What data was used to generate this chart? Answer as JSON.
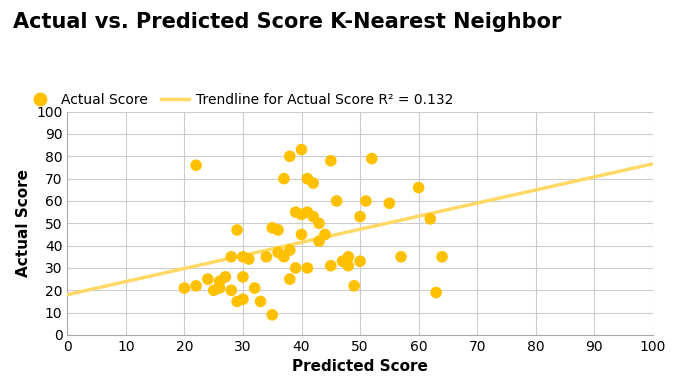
{
  "title": "Actual vs. Predicted Score K-Nearest Neighbor",
  "xlabel": "Predicted Score",
  "ylabel": "Actual Score",
  "xlim": [
    0,
    100
  ],
  "ylim": [
    0,
    100
  ],
  "xticks": [
    0,
    10,
    20,
    30,
    40,
    50,
    60,
    70,
    80,
    90,
    100
  ],
  "yticks": [
    0,
    10,
    20,
    30,
    40,
    50,
    60,
    70,
    80,
    90,
    100
  ],
  "scatter_color": "#FFC000",
  "trendline_color": "#FFD966",
  "r_squared": 0.132,
  "scatter_x": [
    20,
    22,
    22,
    24,
    25,
    26,
    26,
    27,
    28,
    28,
    29,
    29,
    30,
    30,
    30,
    31,
    32,
    33,
    34,
    35,
    35,
    36,
    36,
    37,
    37,
    38,
    38,
    38,
    39,
    39,
    40,
    40,
    40,
    41,
    41,
    41,
    42,
    42,
    43,
    43,
    44,
    45,
    45,
    46,
    47,
    48,
    48,
    49,
    50,
    50,
    51,
    52,
    55,
    57,
    60,
    62,
    63,
    64
  ],
  "scatter_y": [
    21,
    76,
    22,
    25,
    20,
    21,
    24,
    26,
    35,
    20,
    47,
    15,
    16,
    35,
    26,
    34,
    21,
    15,
    35,
    9,
    48,
    47,
    37,
    70,
    35,
    80,
    38,
    25,
    55,
    30,
    83,
    54,
    45,
    70,
    55,
    30,
    68,
    53,
    50,
    42,
    45,
    78,
    31,
    60,
    33,
    35,
    31,
    22,
    33,
    53,
    60,
    79,
    59,
    35,
    66,
    52,
    19,
    35
  ],
  "marker_size": 70,
  "title_fontsize": 15,
  "label_fontsize": 11,
  "tick_fontsize": 10,
  "legend_fontsize": 10,
  "background_color": "#FFFFFF",
  "grid_color": "#CCCCCC"
}
